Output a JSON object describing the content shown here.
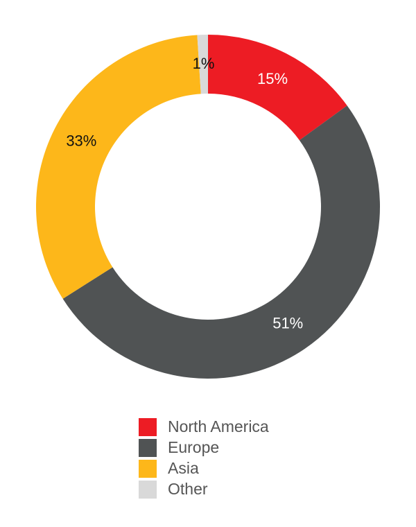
{
  "chart_data": {
    "type": "donut",
    "categories": [
      "North America",
      "Europe",
      "Asia",
      "Other"
    ],
    "values": [
      15,
      51,
      33,
      1
    ],
    "value_labels": [
      "15%",
      "51%",
      "33%",
      "1%"
    ],
    "colors": [
      "#ed1c24",
      "#505354",
      "#fdb71a",
      "#d9d9d9"
    ]
  }
}
